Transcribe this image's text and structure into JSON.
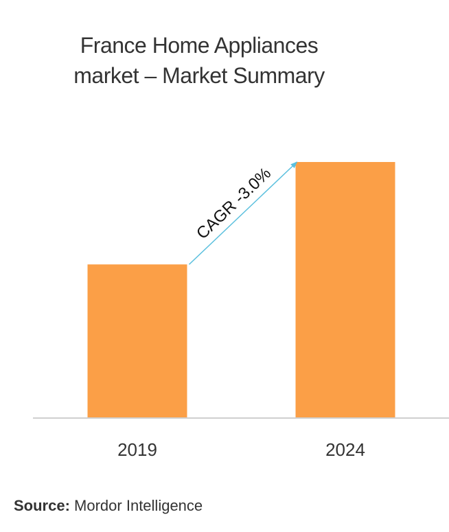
{
  "chart_data": {
    "type": "bar",
    "title_lines": [
      "France Home Appliances",
      "market – Market Summary"
    ],
    "categories": [
      "2019",
      "2024"
    ],
    "values": [
      0.6,
      1.0
    ],
    "value_scale": "relative, no value axis shown",
    "ylim": [
      0,
      1.0
    ],
    "annotation": "CAGR -3.0%",
    "grid": false,
    "legend": "none",
    "bar_color": "#fb9f47",
    "axis_color": "#cfcfcf",
    "arrow_color": "#5bc0de"
  },
  "source": {
    "key": "Source:",
    "value": "Mordor Intelligence"
  }
}
